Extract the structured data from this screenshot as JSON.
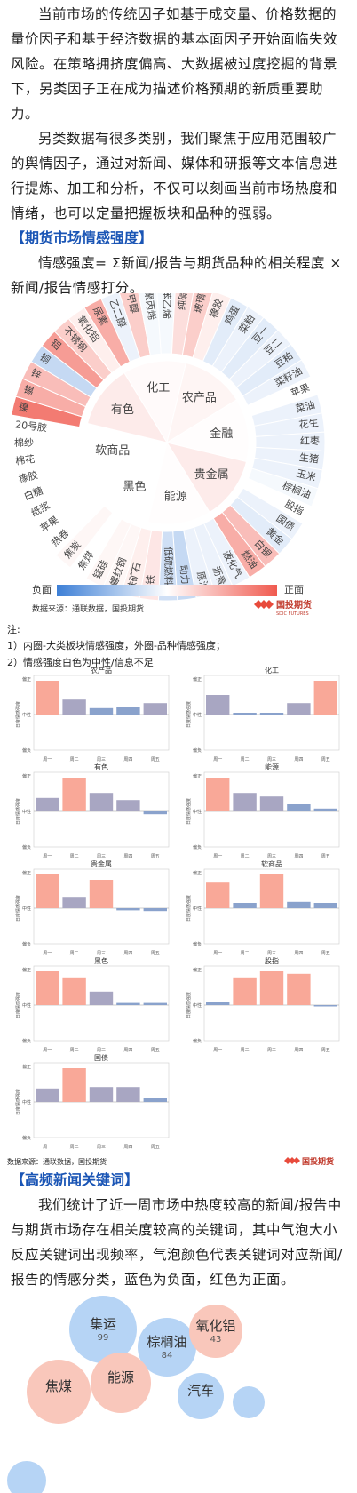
{
  "intro": {
    "para1": "当前市场的传统因子如基于成交量、价格数据的量价因子和基于经济数据的基本面因子开始面临失效风险。在策略拥挤度偏高、大数据被过度挖掘的背景下，另类因子正在成为描述价格预期的新质重要助力。",
    "para2": "另类数据有很多类别，我们聚焦于应用范围较广的舆情因子，通过对新闻、媒体和研报等文本信息进行提炼、加工和分析，不仅可以刻画当前市场热度和情绪，也可以定量把握板块和品种的强弱。"
  },
  "section1": {
    "title": "【期货市场情感强度】",
    "desc": "情感强度= Σ新闻/报告与期货品种的相关程度 × 新闻/报告情感打分。"
  },
  "sunburst": {
    "inner": [
      {
        "name": "化工",
        "score": 0.05
      },
      {
        "name": "农产品",
        "score": 0.1
      },
      {
        "name": "金融",
        "score": 0.02
      },
      {
        "name": "贵金属",
        "score": 0.2
      },
      {
        "name": "能源",
        "score": 0.02
      },
      {
        "name": "黑色",
        "score": 0.0
      },
      {
        "name": "软商品",
        "score": 0.0
      },
      {
        "name": "有色",
        "score": 0.2
      }
    ],
    "outer": [
      {
        "name": "尿素",
        "score": 0.5
      },
      {
        "name": "乙二醇",
        "score": -0.1
      },
      {
        "name": "甲醇",
        "score": 0.3
      },
      {
        "name": "聚丙烯",
        "score": -0.05
      },
      {
        "name": "苯乙烯",
        "score": -0.05
      },
      {
        "name": "纯碱",
        "score": 0.2
      },
      {
        "name": "玻璃",
        "score": 0.3
      },
      {
        "name": "橡胶",
        "score": 0.1
      },
      {
        "name": "鸡蛋",
        "score": -0.15
      },
      {
        "name": "菜粕",
        "score": -0.1
      },
      {
        "name": "豆一",
        "score": -0.15
      },
      {
        "name": "豆二",
        "score": -0.1
      },
      {
        "name": "豆粕",
        "score": -0.15
      },
      {
        "name": "菜籽油",
        "score": -0.1
      },
      {
        "name": "苹果",
        "score": 0.0
      },
      {
        "name": "菜油",
        "score": -0.1
      },
      {
        "name": "花生",
        "score": -0.1
      },
      {
        "name": "红枣",
        "score": -0.1
      },
      {
        "name": "生猪",
        "score": -0.1
      },
      {
        "name": "玉米",
        "score": -0.1
      },
      {
        "name": "棕榈油",
        "score": -0.05
      },
      {
        "name": "股指",
        "score": 0.0
      },
      {
        "name": "国债",
        "score": -0.1
      },
      {
        "name": "黄金",
        "score": -0.15
      },
      {
        "name": "白银",
        "score": 0.4
      },
      {
        "name": "燃油",
        "score": 0.5
      },
      {
        "name": "液化气",
        "score": -0.1
      },
      {
        "name": "沥青",
        "score": -0.1
      },
      {
        "name": "原油",
        "score": -0.1
      },
      {
        "name": "动力煤",
        "score": -0.3
      },
      {
        "name": "低硫燃料油",
        "score": -0.25
      },
      {
        "name": "硅铁",
        "score": 0.15
      },
      {
        "name": "铁矿石",
        "score": 0.1
      },
      {
        "name": "螺纹钢",
        "score": 0.05
      },
      {
        "name": "锰硅",
        "score": 0.05
      },
      {
        "name": "焦煤",
        "score": 0.0
      },
      {
        "name": "焦炭",
        "score": 0.05
      },
      {
        "name": "热卷",
        "score": 0.0
      },
      {
        "name": "苹果",
        "score": 0.0
      },
      {
        "name": "纸浆",
        "score": 0.0
      },
      {
        "name": "白糖",
        "score": 0.0
      },
      {
        "name": "橡胶",
        "score": 0.0
      },
      {
        "name": "棉花",
        "score": 0.0
      },
      {
        "name": "棉纱",
        "score": 0.0
      },
      {
        "name": "20号胶",
        "score": 0.0
      },
      {
        "name": "镍",
        "score": 0.8
      },
      {
        "name": "锡",
        "score": 0.5
      },
      {
        "name": "锌",
        "score": 0.4
      },
      {
        "name": "铜",
        "score": -0.3
      },
      {
        "name": "铝",
        "score": 0.6
      },
      {
        "name": "不锈钢",
        "score": 0.3
      },
      {
        "name": "氧化铝",
        "score": 0.1
      }
    ],
    "legend_neg": "负面",
    "legend_pos": "正面",
    "source": "数据来源：通联数据，国投期货",
    "brand": "国投期货",
    "brand_en": "SDIC FUTURES",
    "colors": {
      "negative": "#3d7fd6",
      "positive": "#f05a4f",
      "neutral": "#ffffff"
    }
  },
  "notes": {
    "label": "注:",
    "n1": "1）内圈-大类板块情感强度，外圈-品种情感强度；",
    "n2": "2）情感强度白色为中性/信息不足"
  },
  "bar_charts": {
    "y_top": "偏正",
    "y_mid": "中性",
    "y_bot": "偏负",
    "ylabel": "日度情感强度",
    "days": [
      "周一",
      "周二",
      "周三",
      "周四",
      "周五"
    ],
    "source": "数据来源：通联数据，国投期货",
    "brand": "国投期货",
    "panels": [
      {
        "title": "农产品",
        "values": [
          0.95,
          0.42,
          0.18,
          0.2,
          0.32
        ]
      },
      {
        "title": "化工",
        "values": [
          0.55,
          0.05,
          0.05,
          0.32,
          0.95
        ]
      },
      {
        "title": "有色",
        "values": [
          0.38,
          0.95,
          0.52,
          0.32,
          -0.08
        ]
      },
      {
        "title": "能源",
        "values": [
          0.95,
          0.52,
          0.42,
          0.2,
          0.08
        ]
      },
      {
        "title": "贵金属",
        "values": [
          0.95,
          0.32,
          0.8,
          -0.06,
          -0.08
        ]
      },
      {
        "title": "软商品",
        "values": [
          0.72,
          0.15,
          0.95,
          0.18,
          0.15
        ]
      },
      {
        "title": "黑色",
        "values": [
          0.95,
          0.78,
          0.38,
          0.06,
          0.06
        ]
      },
      {
        "title": "股指",
        "values": [
          0.08,
          0.78,
          0.95,
          0.88,
          0.0
        ]
      },
      {
        "title": "国债",
        "values": [
          0.38,
          0.95,
          0.42,
          0.42,
          0.12
        ]
      }
    ]
  },
  "section2": {
    "title": "【高频新闻关键词】",
    "desc": "我们统计了近一周市场中热度较高的新闻/报告中与期货市场存在相关度较高的关键词，其中气泡大小反应关键词出现频率，气泡颜色代表关键词对应新闻/报告的情感分类，蓝色为负面，红色为正面。"
  },
  "bubbles": [
    {
      "word": "集运",
      "count": "99",
      "sentiment": "negative"
    },
    {
      "word": "棕榈油",
      "count": "84",
      "sentiment": "negative"
    },
    {
      "word": "氧化铝",
      "count": "43",
      "sentiment": "positive"
    },
    {
      "word": "焦煤",
      "count": "",
      "sentiment": "positive"
    },
    {
      "word": "能源",
      "count": "",
      "sentiment": "positive"
    },
    {
      "word": "汽车",
      "count": "",
      "sentiment": "negative"
    }
  ]
}
